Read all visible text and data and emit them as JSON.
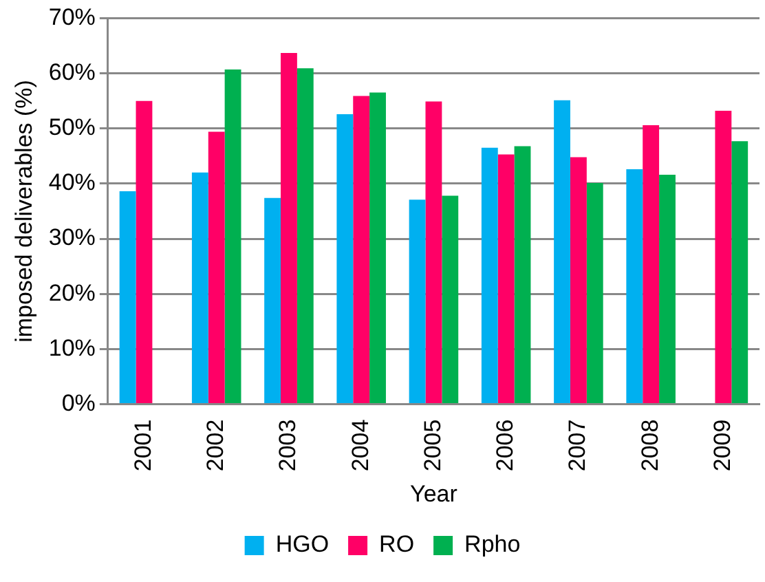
{
  "chart_data": {
    "type": "bar",
    "xlabel": "Year",
    "ylabel": "imposed deliverables (%)",
    "categories": [
      "2001",
      "2002",
      "2003",
      "2004",
      "2005",
      "2006",
      "2007",
      "2008",
      "2009"
    ],
    "series": [
      {
        "name": "HGO",
        "color": "#00b0f0",
        "values": [
          38.6,
          42.0,
          37.4,
          52.6,
          37.1,
          46.5,
          55.1,
          42.6,
          null
        ]
      },
      {
        "name": "RO",
        "color": "#ff0066",
        "values": [
          55.0,
          49.4,
          63.7,
          55.9,
          54.9,
          45.3,
          44.8,
          50.6,
          53.2
        ]
      },
      {
        "name": "Rpho",
        "color": "#00b050",
        "values": [
          null,
          60.7,
          60.9,
          56.5,
          37.8,
          46.8,
          40.1,
          41.6,
          47.7
        ]
      }
    ],
    "ylim": [
      0,
      70
    ],
    "yticks": [
      {
        "value": 0,
        "label": "0%"
      },
      {
        "value": 10,
        "label": "10%"
      },
      {
        "value": 20,
        "label": "20%"
      },
      {
        "value": 30,
        "label": "30%"
      },
      {
        "value": 40,
        "label": "40%"
      },
      {
        "value": 50,
        "label": "50%"
      },
      {
        "value": 60,
        "label": "60%"
      },
      {
        "value": 70,
        "label": "70%"
      }
    ],
    "grid": "y",
    "legend": "bottom"
  }
}
